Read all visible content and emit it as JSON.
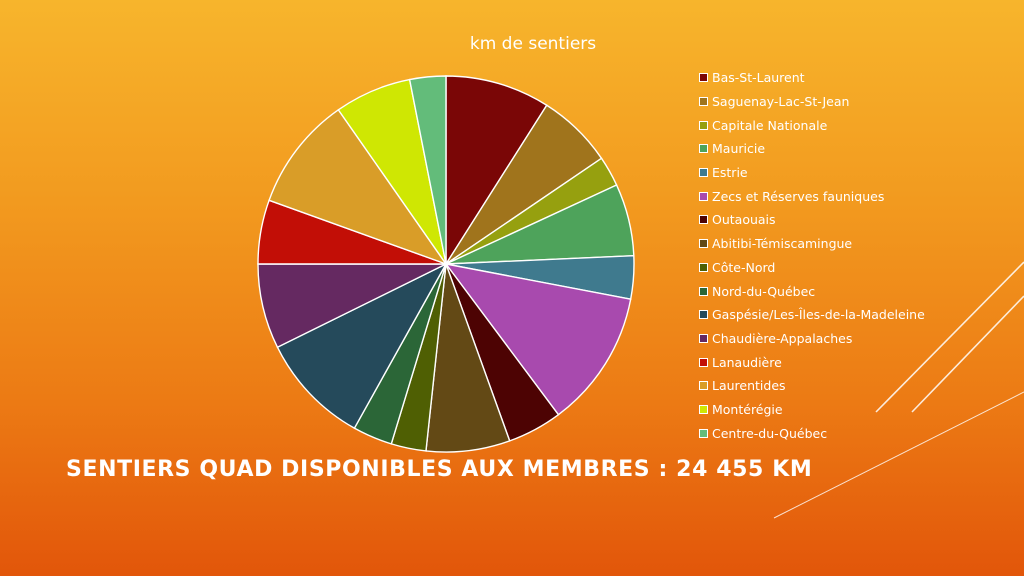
{
  "slide": {
    "heading": "SENTIERS QUAD DISPONIBLES AUX MEMBRES : 24 455 KM"
  },
  "chart_data": {
    "type": "pie",
    "title": "km de sentiers",
    "legend_position": "right",
    "categories": [
      "Bas-St-Laurent",
      "Saguenay-Lac-St-Jean",
      "Capitale Nationale",
      "Mauricie",
      "Estrie",
      "Zecs et Réserves fauniques",
      "Outaouais",
      "Abitibi-Témiscamingue",
      "Côte-Nord",
      "Nord-du-Québec",
      "Gaspésie/Les-Îles-de-la-Madeleine",
      "Chaudière-Appalaches",
      "Lanaudière",
      "Laurentides",
      "Montérégie",
      "Centre-du-Québec"
    ],
    "values": [
      9.0,
      6.5,
      2.6,
      6.2,
      3.7,
      11.8,
      4.7,
      7.2,
      3.0,
      3.4,
      9.6,
      7.3,
      5.5,
      9.8,
      6.6,
      3.1
    ],
    "colors": [
      "#7a0606",
      "#a0741c",
      "#96a00f",
      "#4ea35b",
      "#3f7a8e",
      "#a84aae",
      "#4d0303",
      "#634915",
      "#4f5f03",
      "#2b6637",
      "#254a5b",
      "#652961",
      "#c20e06",
      "#d99d28",
      "#cfe703",
      "#63bc7a"
    ]
  }
}
